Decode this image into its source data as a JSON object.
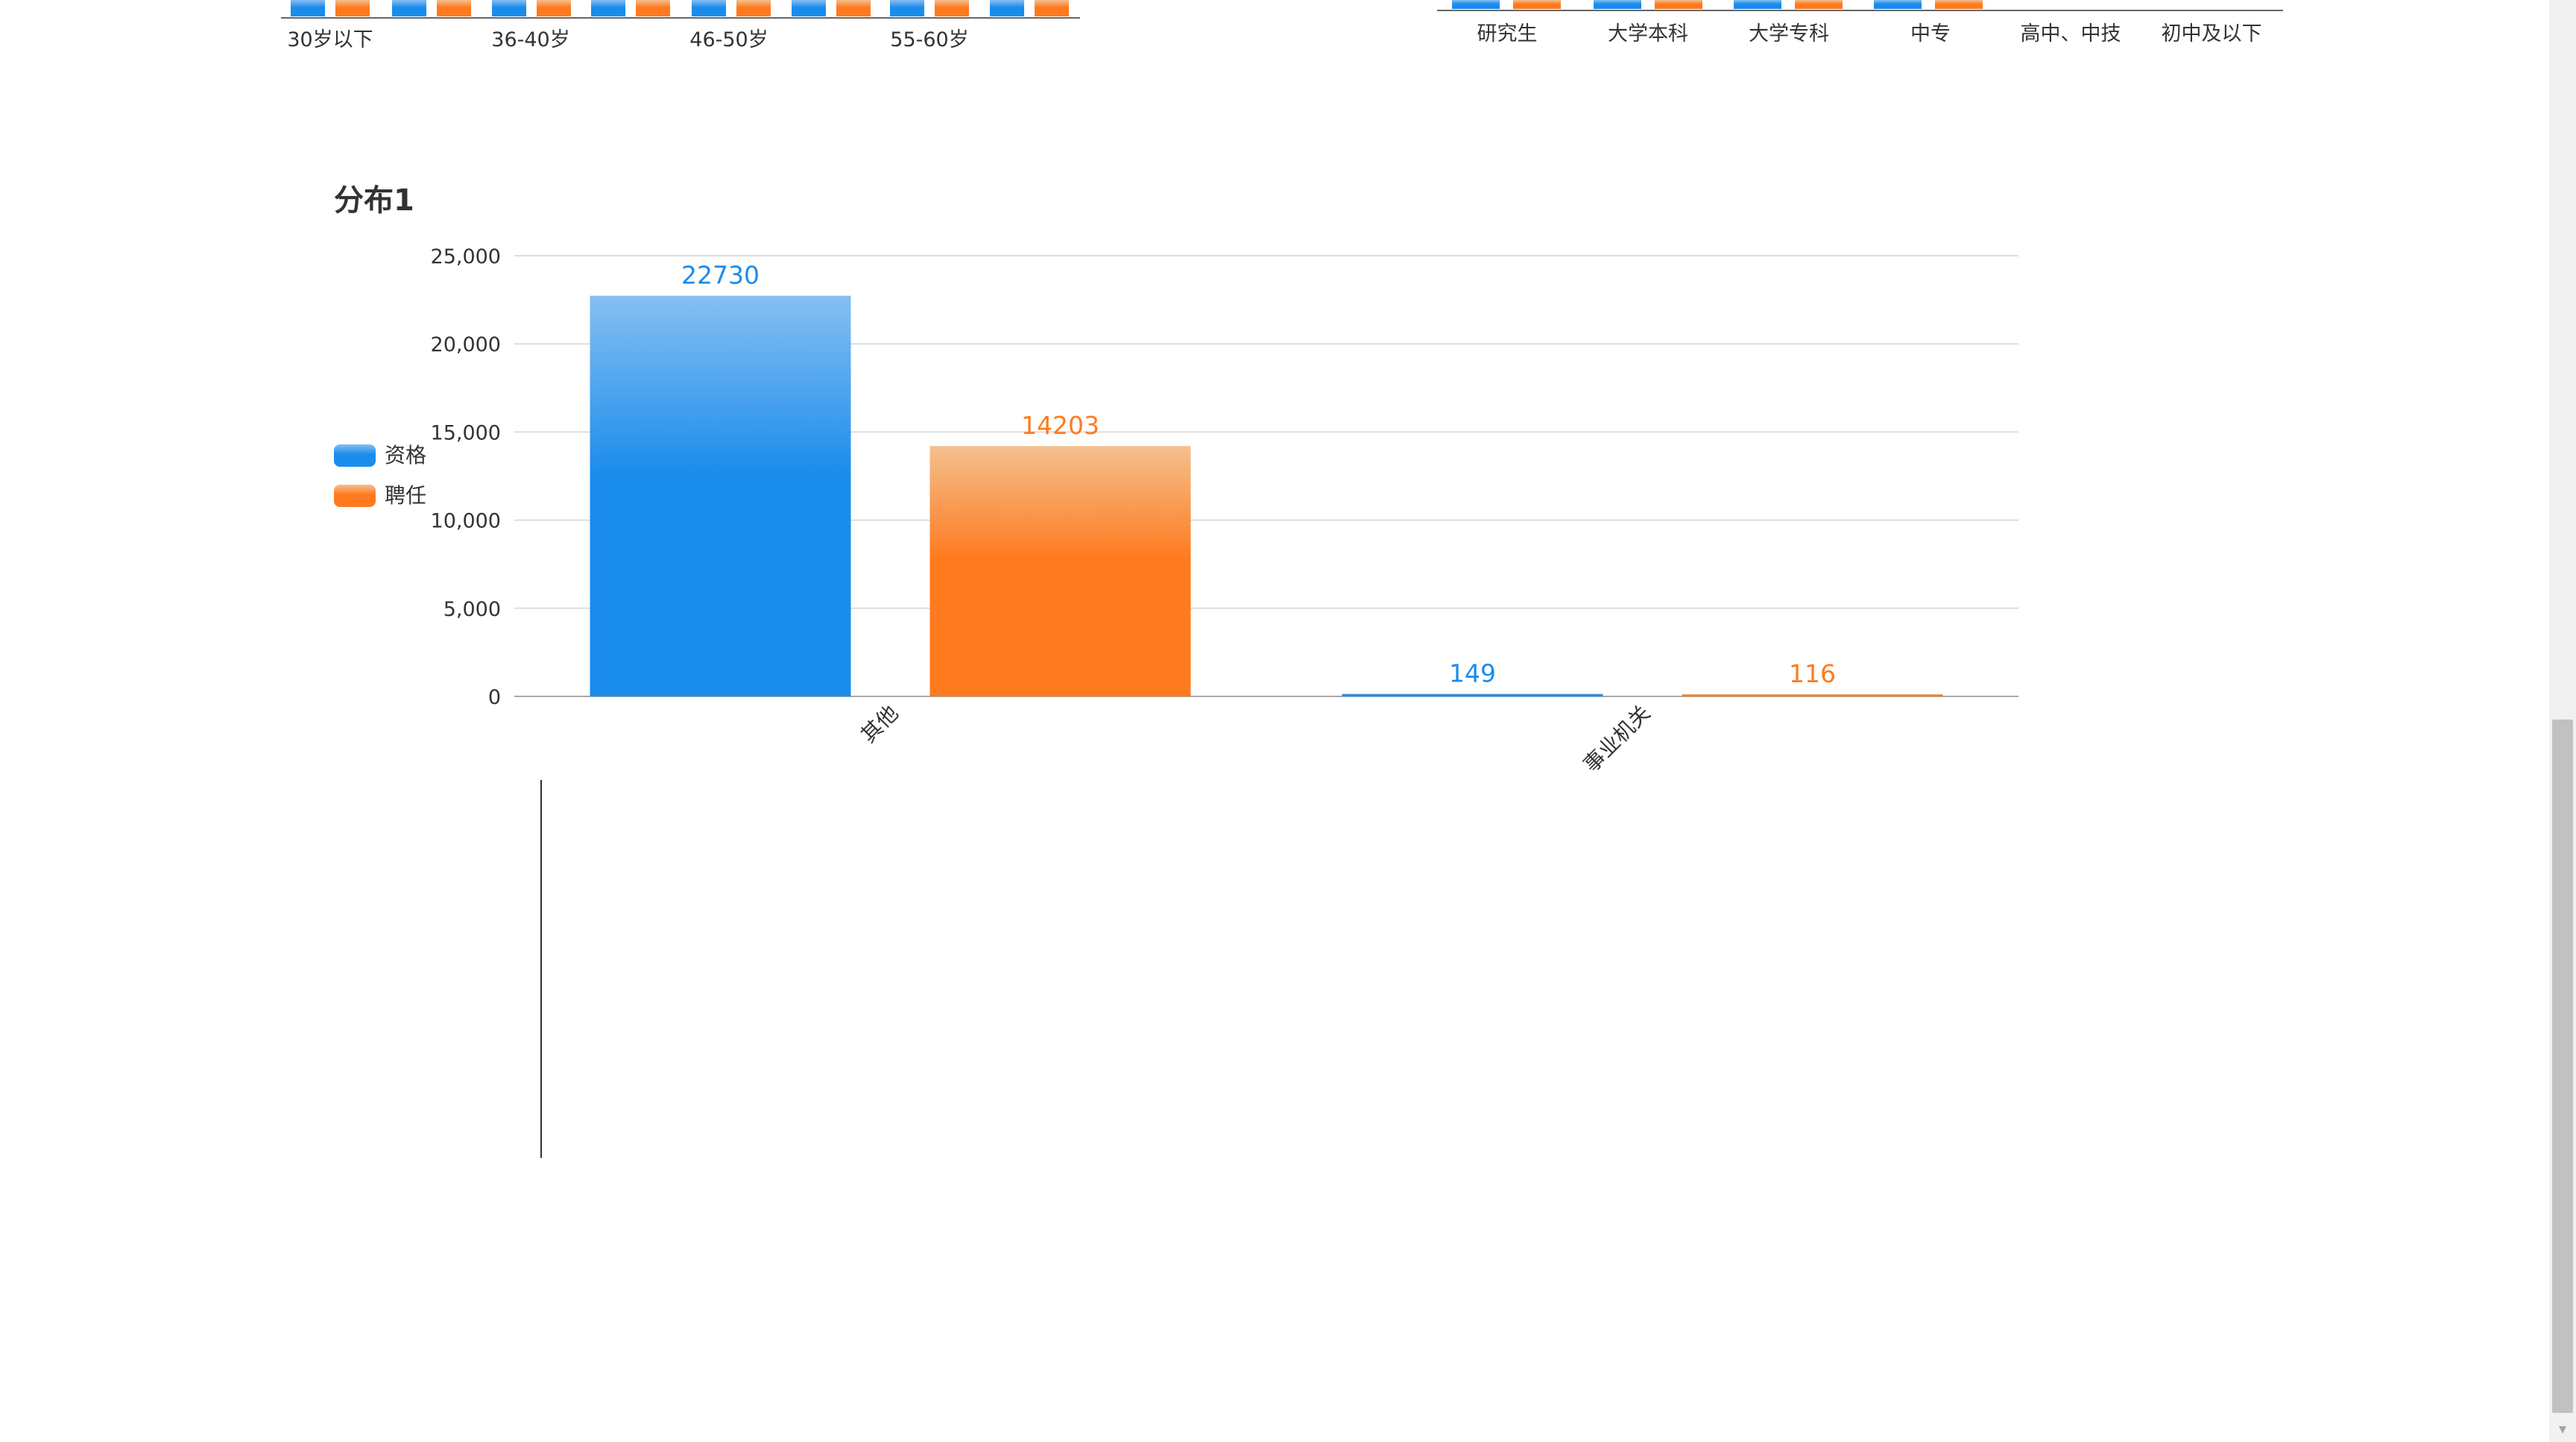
{
  "colors": {
    "qualification": "#1a8cec",
    "employment": "#ff7a1f",
    "grid": "#dddddd",
    "axis": "#888888",
    "text": "#333333"
  },
  "top_left_chart": {
    "ticks": [
      "30岁以下",
      "36-40岁",
      "46-50岁",
      "55-60岁"
    ]
  },
  "top_right_chart": {
    "ticks": [
      "研究生",
      "大学本科",
      "大学专科",
      "中专",
      "高中、中技",
      "初中及以下"
    ]
  },
  "main_chart": {
    "title": "分布1",
    "legend": [
      {
        "name": "资格",
        "color": "#1a8cec"
      },
      {
        "name": "聘任",
        "color": "#ff7a1f"
      }
    ],
    "y_ticks": [
      "0",
      "5,000",
      "10,000",
      "15,000",
      "20,000",
      "25,000"
    ]
  },
  "chart_data": {
    "type": "bar",
    "title": "分布1",
    "categories": [
      "其他",
      "事业机关"
    ],
    "series": [
      {
        "name": "资格",
        "values": [
          22730,
          149
        ]
      },
      {
        "name": "聘任",
        "values": [
          14203,
          116
        ]
      }
    ],
    "ylim": [
      0,
      25000
    ],
    "y_tick_values": [
      0,
      5000,
      10000,
      15000,
      20000,
      25000
    ],
    "grid": true,
    "legend_position": "left",
    "data_labels": true
  }
}
